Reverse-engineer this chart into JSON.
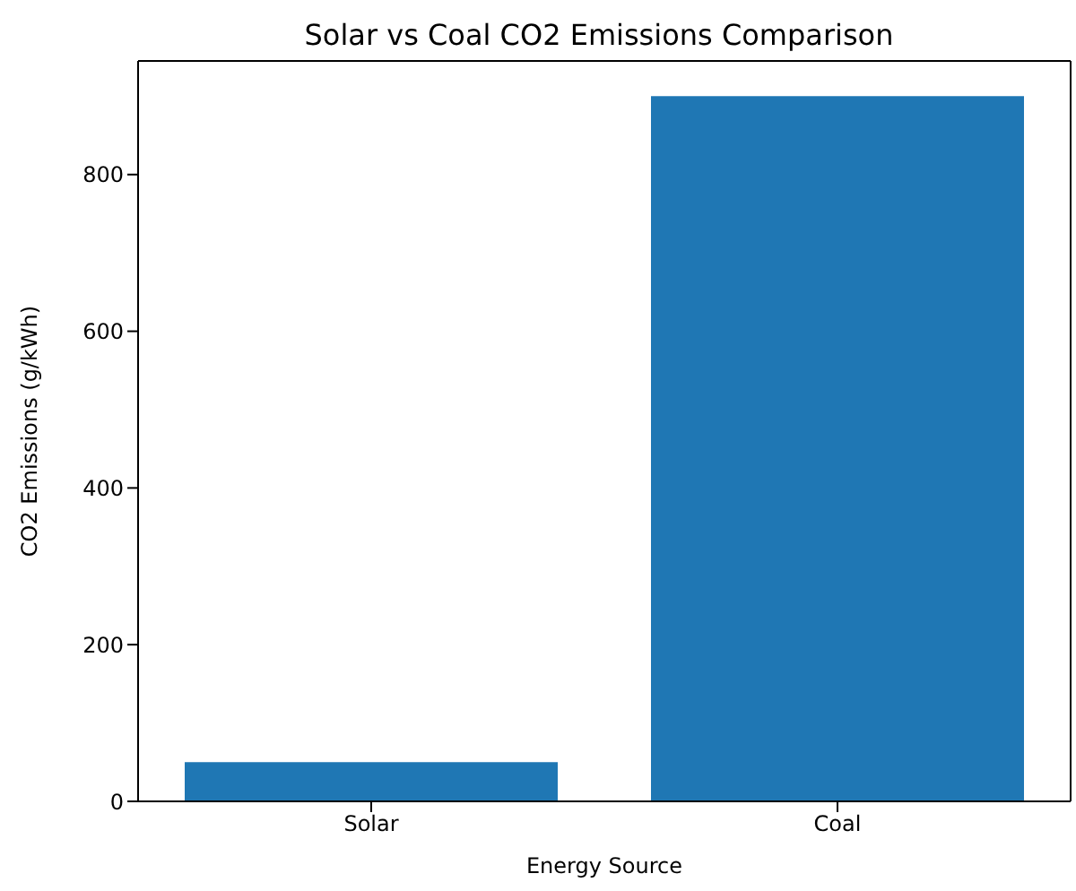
{
  "chart_data": {
    "type": "bar",
    "title": "Solar vs Coal CO2 Emissions Comparison",
    "xlabel": "Energy Source",
    "ylabel": "CO2 Emissions (g/kWh)",
    "categories": [
      "Solar",
      "Coal"
    ],
    "values": [
      50,
      900
    ],
    "color": "#1f77b4",
    "ylim": [
      0,
      945
    ],
    "yticks": [
      0,
      200,
      400,
      600,
      800
    ],
    "grid": false,
    "legend": false
  }
}
